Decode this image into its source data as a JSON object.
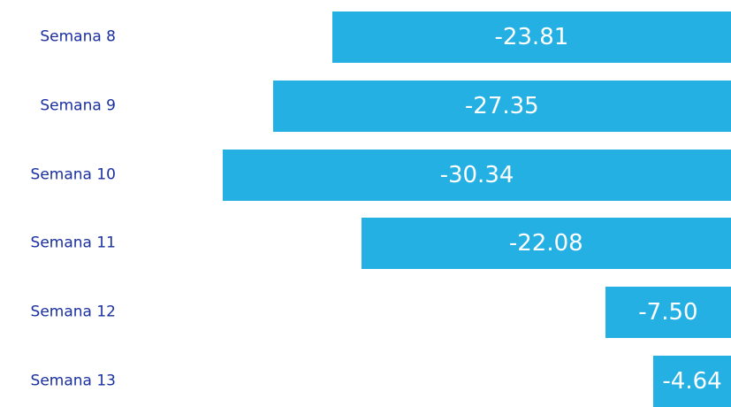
{
  "chart_data": {
    "type": "bar",
    "orientation": "horizontal",
    "categories": [
      "Semana 8",
      "Semana 9",
      "Semana 10",
      "Semana 11",
      "Semana 12",
      "Semana 13"
    ],
    "values": [
      -23.81,
      -27.35,
      -30.34,
      -22.08,
      -7.5,
      -4.64
    ],
    "value_labels": [
      "-23.81",
      "-27.35",
      "-30.34",
      "-22.08",
      "-7.50",
      "-4.64"
    ],
    "xlim": [
      -30.34,
      0
    ],
    "grid": false,
    "colors": {
      "bar": "#25b0e4",
      "category_label": "#1a2fa0",
      "value_label": "#ffffff"
    }
  }
}
